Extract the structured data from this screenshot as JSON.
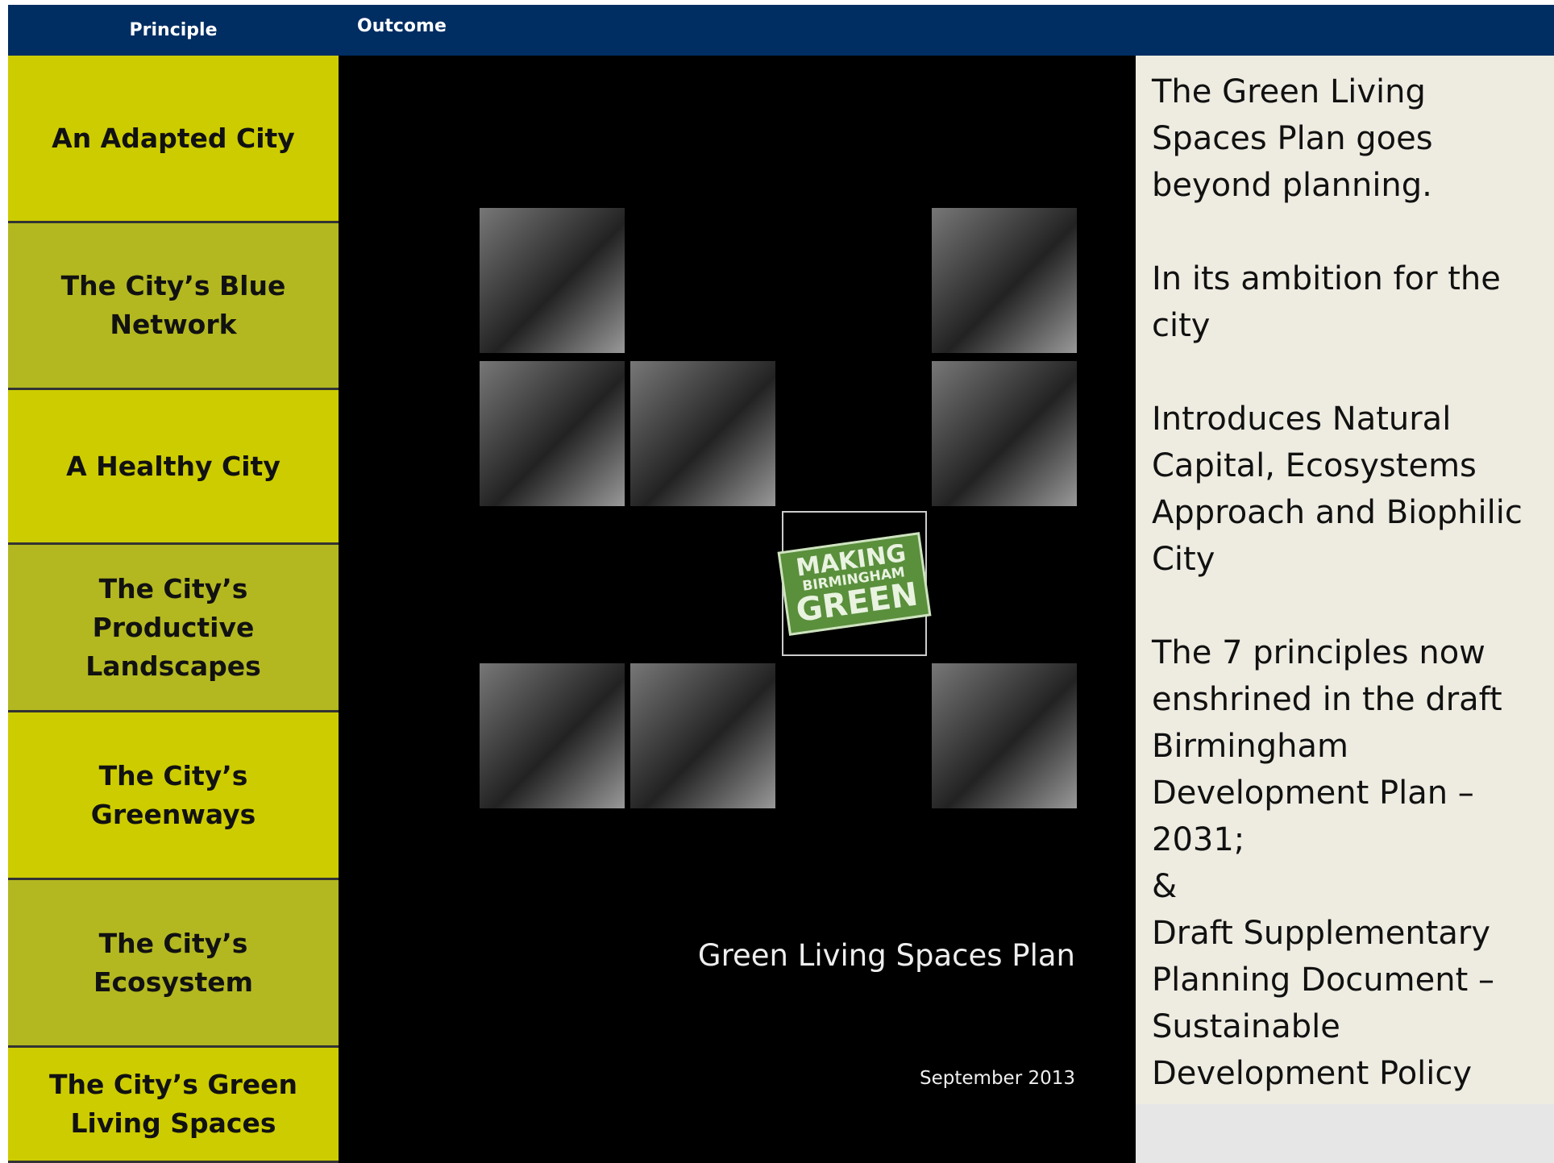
{
  "header": {
    "principle": "Principle",
    "outcome": "Outcome"
  },
  "principles": [
    "An Adapted City",
    "The City’s Blue Network",
    "A Healthy City",
    "The City’s Productive Landscapes",
    "The City’s Greenways",
    "The City’s Ecosystem",
    "The City’s Green Living Spaces"
  ],
  "cover": {
    "logo": [
      "MAKING",
      "BIRMINGHAM",
      "GREEN"
    ],
    "title": "Green Living Spaces Plan",
    "date": "September 2013"
  },
  "outcome": [
    [
      "The Green Living Spaces Plan goes beyond planning."
    ],
    [
      "In its ambition for the city"
    ],
    [
      "Introduces Natural Capital, Ecosystems Approach and Biophilic City"
    ],
    [
      "The 7 principles now enshrined in the draft Birmingham Development Plan – 2031;",
      "&",
      "Draft Supplementary Planning Document – Sustainable Development Policy"
    ]
  ]
}
